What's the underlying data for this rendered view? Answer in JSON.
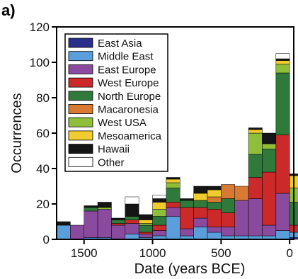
{
  "chart_data": {
    "type": "bar",
    "stacked": true,
    "panel_label": "a)",
    "xlabel": "Date (years BCE)",
    "ylabel": "Occurrences",
    "xlim": [
      1700,
      -30
    ],
    "ylim": [
      0,
      120
    ],
    "x_ticks": [
      1500,
      1000,
      500,
      0
    ],
    "y_ticks": [
      0,
      20,
      40,
      60,
      80,
      100,
      120
    ],
    "grid": false,
    "legend_position": "upper-left",
    "bin_width": 100,
    "bins": [
      1650,
      1550,
      1450,
      1350,
      1250,
      1150,
      1050,
      950,
      850,
      750,
      650,
      550,
      450,
      350,
      250,
      150,
      50,
      -50
    ],
    "series": [
      {
        "name": "East Asia",
        "color": "#2b2f8c",
        "values": [
          0,
          0,
          0,
          0,
          0,
          0,
          0,
          0,
          0,
          0,
          0,
          0,
          0,
          0,
          0,
          0,
          0,
          1
        ]
      },
      {
        "name": "Middle East",
        "color": "#5a9fdc",
        "values": [
          8,
          0,
          1,
          1,
          0,
          3,
          1,
          2,
          13,
          2,
          7,
          4,
          2,
          2,
          2,
          2,
          5,
          3
        ]
      },
      {
        "name": "East Europe",
        "color": "#8a4a9e",
        "values": [
          0,
          8,
          15,
          16,
          8,
          6,
          2,
          3,
          5,
          4,
          5,
          3,
          5,
          20,
          21,
          6,
          21,
          0
        ]
      },
      {
        "name": "West Europe",
        "color": "#cc2a2a",
        "values": [
          0,
          0,
          0,
          0,
          1,
          2,
          1,
          3,
          3,
          12,
          6,
          10,
          8,
          0,
          12,
          30,
          33,
          4
        ]
      },
      {
        "name": "North Europe",
        "color": "#2f7a3a",
        "values": [
          0,
          0,
          2,
          0,
          2,
          2,
          4,
          5,
          8,
          4,
          4,
          4,
          8,
          0,
          13,
          13,
          35,
          13
        ]
      },
      {
        "name": "Macaronesia",
        "color": "#d97a34",
        "values": [
          0,
          0,
          0,
          0,
          0,
          0,
          0,
          0,
          0,
          0,
          0,
          3,
          8,
          8,
          0,
          0,
          0,
          0
        ]
      },
      {
        "name": "West USA",
        "color": "#8fbf3a",
        "values": [
          0,
          0,
          0,
          1,
          0,
          0,
          1,
          4,
          3,
          0,
          0,
          0,
          0,
          0,
          12,
          3,
          5,
          8
        ]
      },
      {
        "name": "Mesoamerica",
        "color": "#f0cc2e",
        "values": [
          0,
          0,
          0,
          0,
          0,
          0,
          2,
          4,
          2,
          0,
          4,
          4,
          0,
          0,
          2,
          0,
          2,
          7
        ]
      },
      {
        "name": "Hawaii",
        "color": "#151515",
        "values": [
          2,
          0,
          1,
          3,
          1,
          7,
          3,
          2,
          1,
          1,
          4,
          2,
          0,
          0,
          1,
          6,
          1,
          1
        ]
      },
      {
        "name": "Other",
        "color": "#ffffff",
        "values": [
          0,
          0,
          0,
          0,
          0,
          4,
          0,
          2,
          0,
          0,
          0,
          0,
          0,
          0,
          0,
          0,
          3,
          0
        ]
      }
    ]
  }
}
